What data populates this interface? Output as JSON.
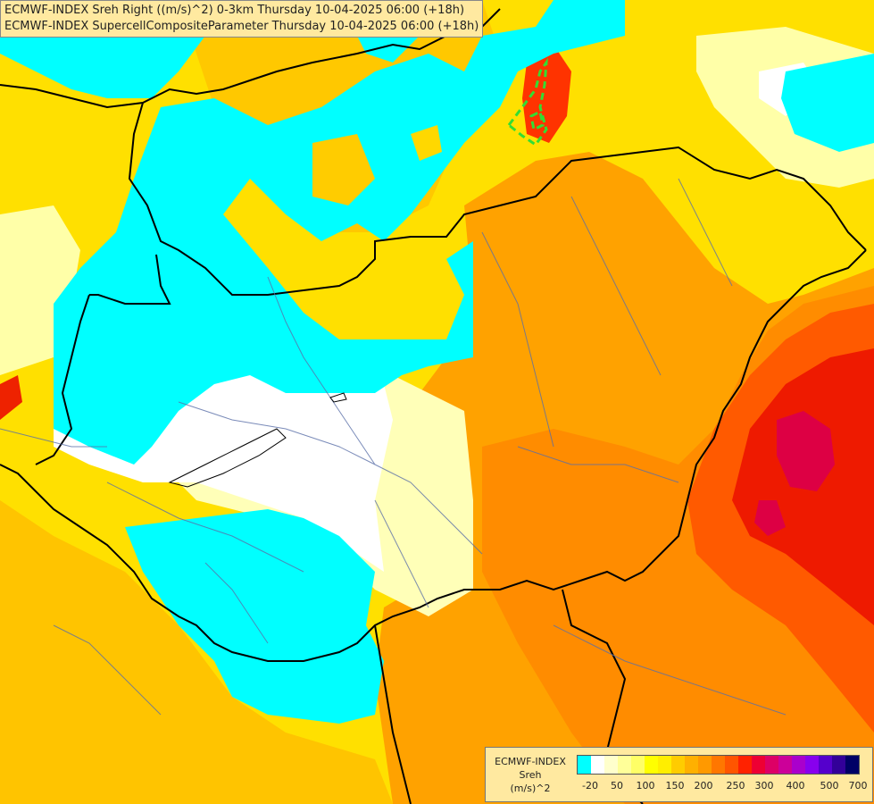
{
  "header": {
    "line1": "ECMWF-INDEX Sreh Right ((m/s)^2) 0-3km Thursday 10-04-2025 06:00 (+18h)",
    "line2": "ECMWF-INDEX SupercellCompositeParameter Thursday 10-04-2025 06:00 (+18h)"
  },
  "legend": {
    "title_line1": "ECMWF-INDEX",
    "title_line2": "Sreh",
    "unit": "(m/s)^2",
    "colors": [
      "#00ffff",
      "#ffffff",
      "#ffffcc",
      "#ffff99",
      "#ffff66",
      "#ffff00",
      "#ffee00",
      "#ffcc00",
      "#ffb000",
      "#ff9900",
      "#ff7700",
      "#ff5500",
      "#ff2200",
      "#ee0033",
      "#dd0066",
      "#cc0099",
      "#aa00cc",
      "#8800ee",
      "#5500cc",
      "#330099",
      "#000066"
    ],
    "ticks": [
      "-20",
      "50",
      "100",
      "150",
      "200",
      "250",
      "300",
      "400",
      "500",
      "700"
    ]
  },
  "map": {
    "colors": {
      "cyan": "#00ffff",
      "white": "#ffffff",
      "pale": "#ffffc0",
      "yellow": "#ffff00",
      "gold": "#ffcc00",
      "orange": "#ffa500",
      "deep_orange": "#ff7700",
      "red_orange": "#ff4400",
      "red": "#ee1100",
      "crimson": "#dd0044",
      "scp_contour": "#33dd33"
    }
  }
}
